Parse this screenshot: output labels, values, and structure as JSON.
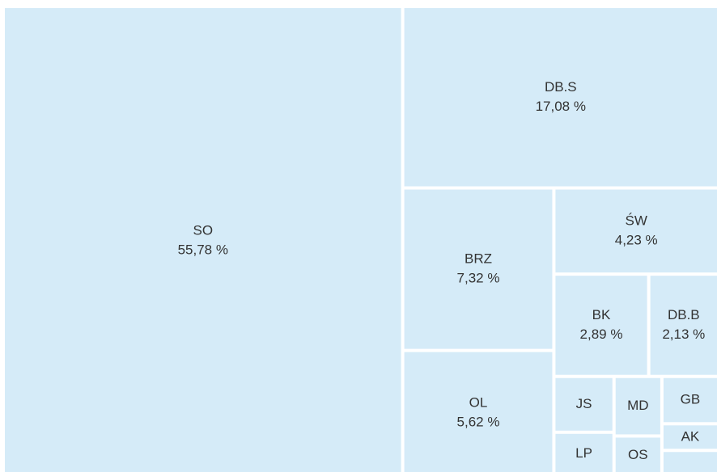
{
  "chart_data": {
    "type": "treemap",
    "categories": [
      "SO",
      "DB.S",
      "BRZ",
      "OL",
      "ŚW",
      "BK",
      "DB.B",
      "JS",
      "LP",
      "MD",
      "OS",
      "GB",
      "AK",
      null
    ],
    "values": [
      55.78,
      17.08,
      7.32,
      5.62,
      4.23,
      2.89,
      2.13,
      1.0,
      0.77,
      0.85,
      0.56,
      0.8,
      0.45,
      0.42
    ],
    "value_labels": [
      "55,78 %",
      "17,08 %",
      "7,32 %",
      "5,62 %",
      "4,23 %",
      "2,89 %",
      "2,13 %",
      null,
      null,
      null,
      null,
      null,
      null,
      null
    ],
    "color": "#d5ebf8"
  }
}
